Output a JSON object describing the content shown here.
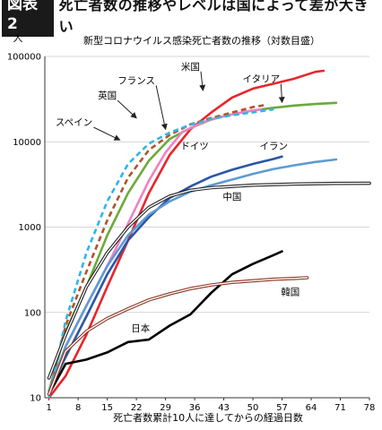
{
  "figure": {
    "tag": "図表2",
    "headline": "死亡者数の推移やレベルは国によって差が大きい"
  },
  "chart_data": {
    "type": "line",
    "title": "新型コロナウイルス感染死亡者数の推移（対数目盛）",
    "ylabel": "人",
    "xlabel": "死亡者数累計10人に達してからの経過日数",
    "yscale": "log",
    "ylim": [
      10,
      100000
    ],
    "xlim": [
      0,
      78
    ],
    "xticks": [
      1,
      8,
      15,
      22,
      29,
      36,
      43,
      50,
      57,
      64,
      71,
      78
    ],
    "yticks": [
      10,
      100,
      1000,
      10000,
      100000
    ],
    "yticklabels": [
      "10",
      "100",
      "1000",
      "10000",
      "100000"
    ],
    "grid": "horizontal",
    "series": [
      {
        "name": "米国",
        "color": "#e8252a",
        "style": "solid",
        "x": [
          1,
          5,
          10,
          15,
          20,
          25,
          30,
          35,
          40,
          45,
          50,
          55,
          60,
          65,
          67
        ],
        "y": [
          10,
          18,
          55,
          200,
          700,
          2500,
          7000,
          14000,
          22000,
          33000,
          42000,
          48000,
          55000,
          66000,
          68000
        ]
      },
      {
        "name": "イタリア",
        "color": "#6aaa3a",
        "style": "solid",
        "x": [
          1,
          5,
          10,
          15,
          20,
          25,
          30,
          35,
          40,
          45,
          50,
          55,
          60,
          65,
          70
        ],
        "y": [
          12,
          60,
          200,
          800,
          2500,
          6000,
          10800,
          14500,
          18300,
          21000,
          23300,
          25000,
          26600,
          27700,
          28600
        ]
      },
      {
        "name": "フランス",
        "color": "#ee82c4",
        "style": "solid",
        "x": [
          1,
          5,
          10,
          15,
          20,
          25,
          29,
          33,
          38,
          43,
          48,
          52
        ],
        "y": [
          11,
          40,
          120,
          350,
          1100,
          3500,
          7500,
          13000,
          17000,
          20000,
          22500,
          24000
        ]
      },
      {
        "name": "英国",
        "color": "#b0542a",
        "style": "dashed",
        "x": [
          1,
          5,
          10,
          15,
          20,
          25,
          30,
          35,
          40,
          45,
          50,
          53
        ],
        "y": [
          11,
          70,
          300,
          1200,
          3800,
          8000,
          12000,
          16000,
          19000,
          22000,
          25500,
          27000
        ]
      },
      {
        "name": "スペイン",
        "color": "#2fb6e6",
        "style": "dashed",
        "x": [
          1,
          5,
          10,
          15,
          20,
          25,
          30,
          35,
          40,
          45,
          50,
          55
        ],
        "y": [
          10,
          80,
          500,
          2000,
          5500,
          9500,
          12800,
          15800,
          18500,
          20500,
          22100,
          24000
        ]
      },
      {
        "name": "ドイツ",
        "color": "#2b55a8",
        "style": "solid",
        "x": [
          1,
          5,
          10,
          15,
          20,
          25,
          30,
          35,
          40,
          45,
          50,
          55,
          57
        ],
        "y": [
          12,
          30,
          90,
          280,
          700,
          1300,
          2200,
          3000,
          3900,
          4700,
          5500,
          6300,
          6700
        ]
      },
      {
        "name": "イラン",
        "color": "#5e9bd3",
        "style": "solid",
        "x": [
          1,
          5,
          10,
          15,
          20,
          25,
          30,
          35,
          40,
          45,
          50,
          55,
          60,
          65,
          70
        ],
        "y": [
          12,
          40,
          120,
          350,
          800,
          1400,
          2000,
          2600,
          3100,
          3600,
          4200,
          4800,
          5300,
          5800,
          6200
        ]
      },
      {
        "name": "中国",
        "color": "#222222",
        "style": "double",
        "x": [
          1,
          5,
          10,
          15,
          20,
          25,
          30,
          35,
          40,
          45,
          50,
          60,
          70,
          78
        ],
        "y": [
          17,
          55,
          200,
          500,
          1000,
          1700,
          2300,
          2700,
          2900,
          3000,
          3100,
          3200,
          3250,
          3260
        ]
      },
      {
        "name": "日本",
        "color": "#000000",
        "style": "solid",
        "x": [
          1,
          5,
          10,
          15,
          20,
          25,
          30,
          35,
          40,
          45,
          50,
          55,
          57
        ],
        "y": [
          11,
          25,
          28,
          34,
          45,
          48,
          70,
          95,
          170,
          280,
          370,
          470,
          520
        ]
      },
      {
        "name": "韓国",
        "color": "#8a3320",
        "style": "double",
        "x": [
          1,
          5,
          10,
          15,
          20,
          25,
          30,
          35,
          40,
          45,
          50,
          55,
          60,
          63
        ],
        "y": [
          11,
          35,
          60,
          85,
          110,
          140,
          165,
          190,
          210,
          225,
          235,
          245,
          250,
          255
        ]
      }
    ],
    "annotations": [
      {
        "text": "米国",
        "x": 35,
        "y": 70000,
        "arrow_to": [
          38,
          40000
        ]
      },
      {
        "text": "イタリア",
        "x": 52,
        "y": 50000,
        "arrow_to": [
          57,
          29000
        ]
      },
      {
        "text": "フランス",
        "x": 22,
        "y": 48000,
        "arrow_to": [
          29,
          14000
        ]
      },
      {
        "text": "英国",
        "x": 15,
        "y": 32000,
        "arrow_to": [
          22,
          19000
        ]
      },
      {
        "text": "スペイン",
        "x": 7,
        "y": 15500,
        "arrow_to": [
          18,
          10500
        ]
      },
      {
        "text": "ドイツ",
        "x": 36,
        "y": 8200
      },
      {
        "text": "イラン",
        "x": 55,
        "y": 8200
      },
      {
        "text": "中国",
        "x": 45,
        "y": 2100
      },
      {
        "text": "韓国",
        "x": 59,
        "y": 160
      },
      {
        "text": "日本",
        "x": 23,
        "y": 60
      }
    ]
  }
}
